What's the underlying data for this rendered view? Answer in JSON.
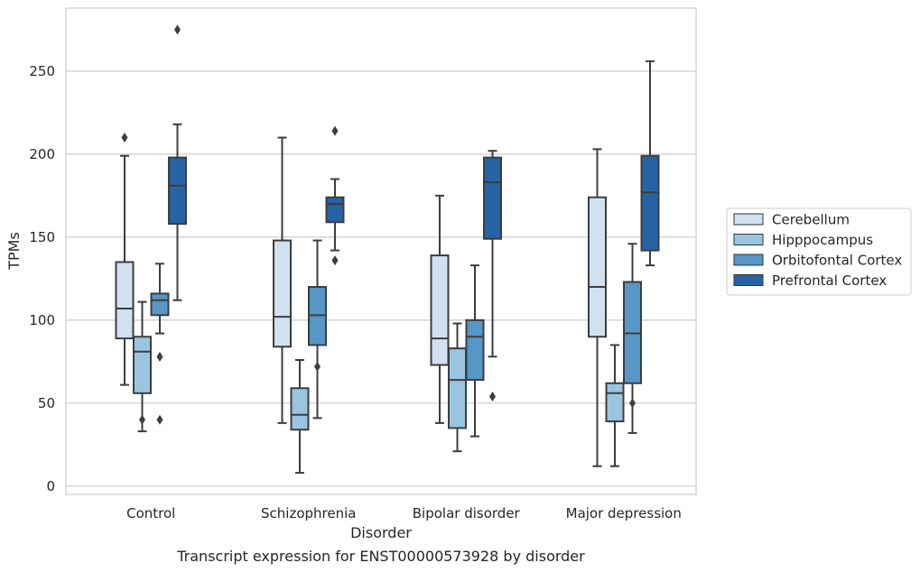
{
  "chart_data": {
    "type": "box",
    "caption": "Transcript expression for ENST00000573928 by disorder",
    "xlabel": "Disorder",
    "ylabel": "TPMs",
    "ylim": [
      -5,
      288
    ],
    "yticks": [
      0,
      50,
      100,
      150,
      200,
      250
    ],
    "grid": true,
    "legend_position": "right",
    "categories": [
      "Control",
      "Schizophrenia",
      "Bipolar disorder",
      "Major depression"
    ],
    "series": [
      {
        "name": "Cerebellum",
        "color": "#d1e1f0",
        "boxes": [
          {
            "whislo": 61,
            "q1": 89,
            "med": 107,
            "q3": 135,
            "whishi": 199,
            "fliers": [
              210
            ]
          },
          {
            "whislo": 38,
            "q1": 84,
            "med": 102,
            "q3": 148,
            "whishi": 210,
            "fliers": []
          },
          {
            "whislo": 38,
            "q1": 73,
            "med": 89,
            "q3": 139,
            "whishi": 175,
            "fliers": []
          },
          {
            "whislo": 12,
            "q1": 90,
            "med": 120,
            "q3": 174,
            "whishi": 203,
            "fliers": []
          }
        ]
      },
      {
        "name": "Hipppocampus",
        "color": "#9ac5e0",
        "boxes": [
          {
            "whislo": 33,
            "q1": 56,
            "med": 81,
            "q3": 90,
            "whishi": 111,
            "fliers": [
              40
            ]
          },
          {
            "whislo": 8,
            "q1": 34,
            "med": 43,
            "q3": 59,
            "whishi": 76,
            "fliers": []
          },
          {
            "whislo": 21,
            "q1": 35,
            "med": 64,
            "q3": 83,
            "whishi": 98,
            "fliers": []
          },
          {
            "whislo": 12,
            "q1": 39,
            "med": 56,
            "q3": 62,
            "whishi": 85,
            "fliers": []
          }
        ]
      },
      {
        "name": "Orbitofontal Cortex",
        "color": "#5697c6",
        "boxes": [
          {
            "whislo": 92,
            "q1": 103,
            "med": 112,
            "q3": 116,
            "whishi": 134,
            "fliers": [
              78,
              40
            ]
          },
          {
            "whislo": 41,
            "q1": 85,
            "med": 103,
            "q3": 120,
            "whishi": 148,
            "fliers": [
              72
            ]
          },
          {
            "whislo": 30,
            "q1": 64,
            "med": 90,
            "q3": 100,
            "whishi": 133,
            "fliers": []
          },
          {
            "whislo": 32,
            "q1": 62,
            "med": 92,
            "q3": 123,
            "whishi": 146,
            "fliers": [
              50
            ]
          }
        ]
      },
      {
        "name": "Prefrontal Cortex",
        "color": "#2663a4",
        "boxes": [
          {
            "whislo": 112,
            "q1": 158,
            "med": 181,
            "q3": 198,
            "whishi": 218,
            "fliers": [
              275
            ]
          },
          {
            "whislo": 142,
            "q1": 159,
            "med": 170,
            "q3": 174,
            "whishi": 185,
            "fliers": [
              214,
              136
            ]
          },
          {
            "whislo": 78,
            "q1": 149,
            "med": 183,
            "q3": 198,
            "whishi": 202,
            "fliers": [
              54
            ]
          },
          {
            "whislo": 133,
            "q1": 142,
            "med": 177,
            "q3": 199,
            "whishi": 256,
            "fliers": []
          }
        ]
      }
    ]
  }
}
